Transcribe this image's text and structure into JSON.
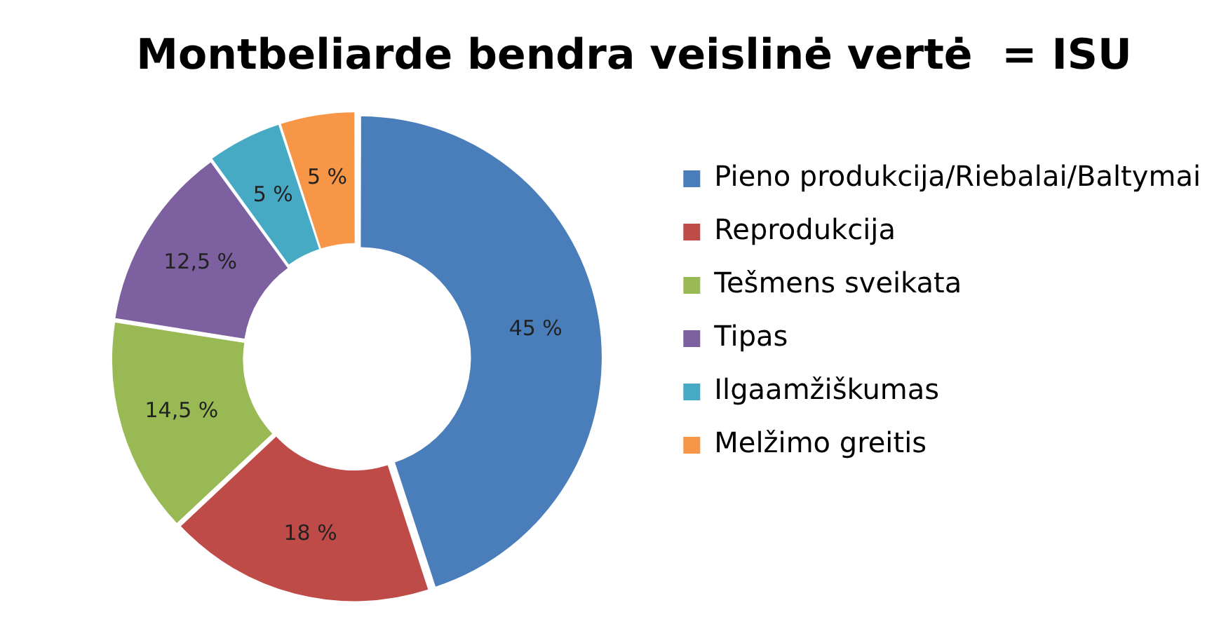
{
  "chart_data": {
    "type": "donut",
    "title": "Montbeliarde bendra veislinė vertė  = ISU",
    "categories": [
      "Pieno produkcija/Riebalai/Baltymai",
      "Reprodukcija",
      "Tešmens sveikata",
      "Tipas",
      "Ilgaamžiškumas",
      "Melžimo greitis"
    ],
    "values": [
      45,
      18,
      14.5,
      12.5,
      5,
      5
    ],
    "value_labels": [
      "45 %",
      "18 %",
      "14,5 %",
      "12,5 %",
      "5 %",
      "5 %"
    ],
    "colors": [
      "#4a7ebb",
      "#be4b48",
      "#98b954",
      "#7d60a0",
      "#46aac5",
      "#f79646"
    ],
    "legend": "right"
  }
}
